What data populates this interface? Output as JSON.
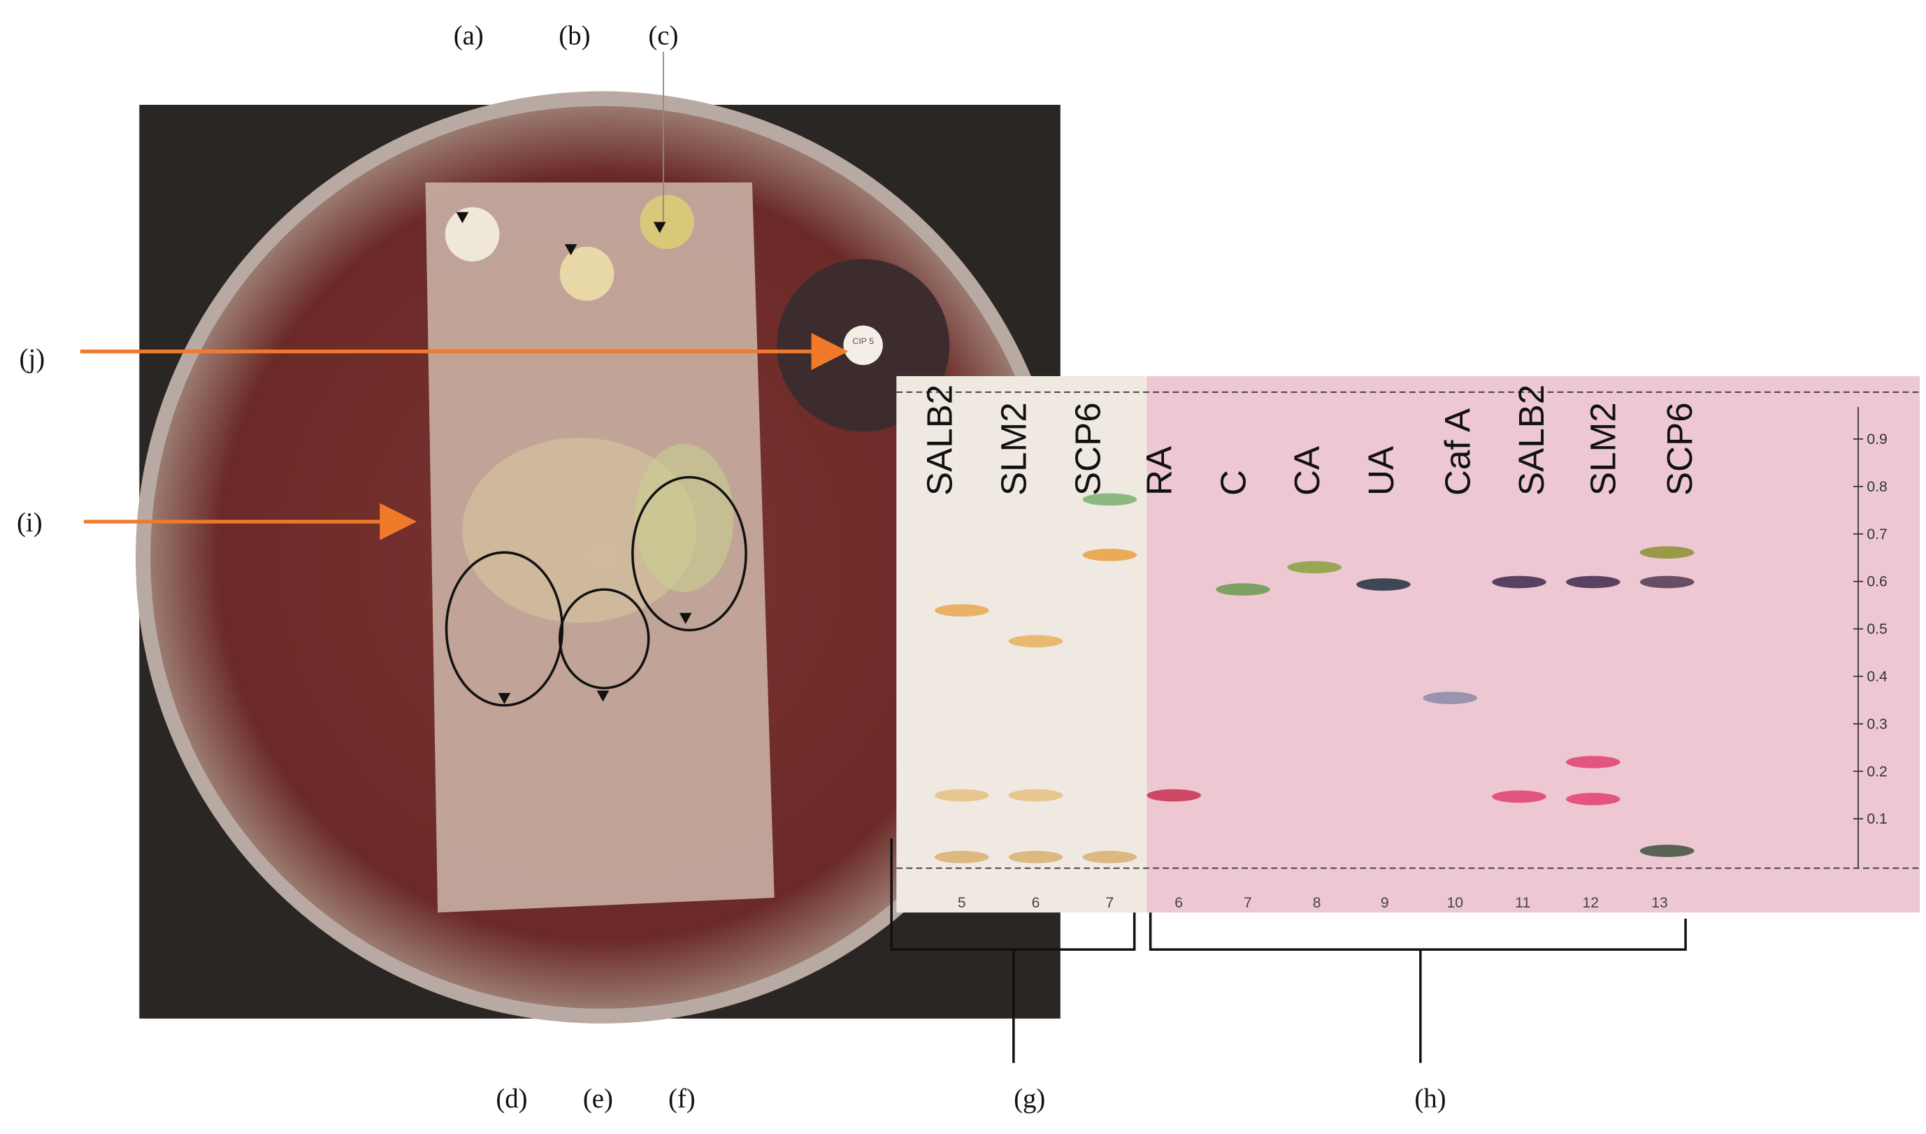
{
  "panel_labels": {
    "a": "(a)",
    "b": "(b)",
    "c": "(c)",
    "d": "(d)",
    "e": "(e)",
    "f": "(f)",
    "g": "(g)",
    "h": "(h)",
    "i": "(i)",
    "j": "(j)"
  },
  "disc_label": "CIP 5",
  "plate_left": {
    "lanes": [
      {
        "name": "SALB2",
        "number": "5"
      },
      {
        "name": "SLM2",
        "number": "6"
      },
      {
        "name": "SCP6",
        "number": "7"
      }
    ]
  },
  "plate_right": {
    "lanes": [
      {
        "name": "RA",
        "number": "6"
      },
      {
        "name": "C",
        "number": "7"
      },
      {
        "name": "CA",
        "number": "8"
      },
      {
        "name": "UA",
        "number": "9"
      },
      {
        "name": "Caf A",
        "number": "10"
      },
      {
        "name": "SALB2",
        "number": "11"
      },
      {
        "name": "SLM2",
        "number": "12"
      },
      {
        "name": "SCP6",
        "number": "13"
      }
    ]
  },
  "rf_scale": [
    "0.9",
    "0.8",
    "0.7",
    "0.6",
    "0.5",
    "0.4",
    "0.3",
    "0.2",
    "0.1"
  ]
}
